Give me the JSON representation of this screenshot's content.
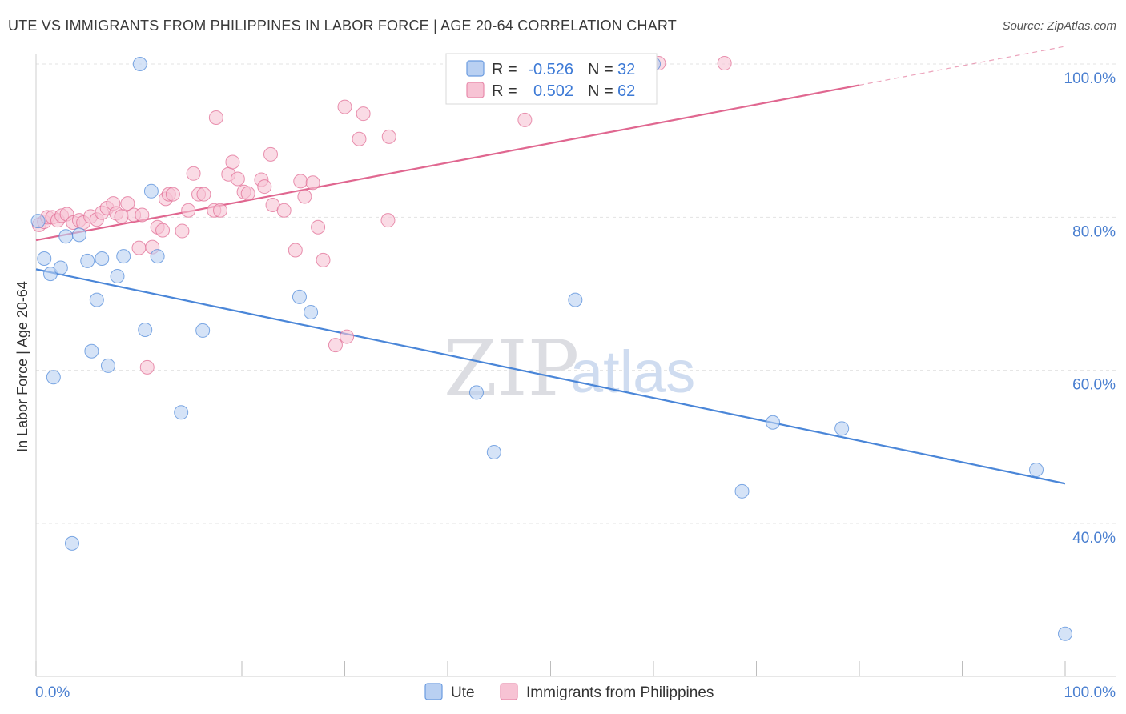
{
  "header": {
    "title": "UTE VS IMMIGRANTS FROM PHILIPPINES IN LABOR FORCE | AGE 20-64 CORRELATION CHART",
    "source": "Source: ZipAtlas.com"
  },
  "watermark": {
    "part1": "ZIP",
    "part2": "atlas"
  },
  "chart_data": {
    "type": "scatter",
    "title": "UTE VS IMMIGRANTS FROM PHILIPPINES IN LABOR FORCE | AGE 20-64 CORRELATION CHART",
    "xlabel": "",
    "ylabel": "In Labor Force | Age 20-64",
    "xlim": [
      0,
      100
    ],
    "ylim": [
      22,
      102
    ],
    "x_tick_labels": {
      "left": "0.0%",
      "right": "100.0%"
    },
    "y_ticks": [
      {
        "value": 100,
        "label": "100.0%"
      },
      {
        "value": 80,
        "label": "80.0%"
      },
      {
        "value": 60,
        "label": "60.0%"
      },
      {
        "value": 40,
        "label": "40.0%"
      }
    ],
    "grid": true,
    "legend_position": "bottom-center",
    "series": [
      {
        "name": "Ute",
        "color": "#4a86d8",
        "fill": "#b9d0f2",
        "R_label": "R =",
        "R_value": "-0.526",
        "N_label": "N =",
        "N_value": "32",
        "trend": {
          "x0": 0,
          "y0": 73.2,
          "x1": 100,
          "y1": 45.2,
          "dashed_from": null
        },
        "points": [
          [
            0.2,
            79.5
          ],
          [
            0.8,
            74.6
          ],
          [
            1.4,
            72.6
          ],
          [
            1.7,
            59.1
          ],
          [
            2.4,
            73.4
          ],
          [
            2.9,
            77.5
          ],
          [
            3.5,
            37.4
          ],
          [
            4.2,
            77.7
          ],
          [
            5.0,
            74.3
          ],
          [
            5.4,
            62.5
          ],
          [
            5.9,
            69.2
          ],
          [
            6.4,
            74.6
          ],
          [
            7.0,
            60.6
          ],
          [
            7.9,
            72.3
          ],
          [
            8.5,
            74.9
          ],
          [
            10.1,
            100.0
          ],
          [
            10.6,
            65.3
          ],
          [
            11.2,
            83.4
          ],
          [
            11.8,
            74.9
          ],
          [
            14.1,
            54.5
          ],
          [
            16.2,
            65.2
          ],
          [
            25.6,
            69.6
          ],
          [
            26.7,
            67.6
          ],
          [
            42.8,
            57.1
          ],
          [
            44.5,
            49.3
          ],
          [
            52.4,
            69.2
          ],
          [
            60.0,
            100.0
          ],
          [
            68.6,
            44.2
          ],
          [
            71.6,
            53.2
          ],
          [
            78.3,
            52.4
          ],
          [
            97.2,
            47.0
          ],
          [
            100.0,
            25.6
          ]
        ]
      },
      {
        "name": "Immigrants from Philippines",
        "color": "#e06790",
        "fill": "#f7c3d4",
        "R_label": "R =",
        "R_value": "0.502",
        "N_label": "N =",
        "N_value": "62",
        "trend": {
          "x0": 0,
          "y0": 77.0,
          "x1": 100,
          "y1": 102.3,
          "dashed_from": 80
        },
        "points": [
          [
            0.3,
            79.0
          ],
          [
            0.8,
            79.4
          ],
          [
            1.1,
            80.0
          ],
          [
            1.6,
            80.0
          ],
          [
            2.1,
            79.6
          ],
          [
            2.5,
            80.2
          ],
          [
            3.0,
            80.4
          ],
          [
            3.6,
            79.3
          ],
          [
            4.2,
            79.6
          ],
          [
            4.6,
            79.3
          ],
          [
            5.3,
            80.1
          ],
          [
            5.9,
            79.7
          ],
          [
            6.4,
            80.6
          ],
          [
            6.9,
            81.2
          ],
          [
            7.5,
            81.8
          ],
          [
            7.8,
            80.5
          ],
          [
            8.3,
            80.1
          ],
          [
            8.9,
            81.8
          ],
          [
            9.5,
            80.3
          ],
          [
            10.3,
            80.3
          ],
          [
            10.0,
            76.0
          ],
          [
            10.8,
            60.4
          ],
          [
            11.3,
            76.1
          ],
          [
            11.8,
            78.7
          ],
          [
            12.3,
            78.3
          ],
          [
            12.6,
            82.4
          ],
          [
            12.9,
            83.0
          ],
          [
            13.3,
            83.0
          ],
          [
            14.2,
            78.2
          ],
          [
            14.8,
            80.9
          ],
          [
            15.3,
            85.7
          ],
          [
            15.8,
            83.0
          ],
          [
            16.3,
            83.0
          ],
          [
            17.3,
            80.9
          ],
          [
            17.9,
            80.9
          ],
          [
            17.5,
            93.0
          ],
          [
            18.7,
            85.6
          ],
          [
            19.1,
            87.2
          ],
          [
            19.6,
            85.0
          ],
          [
            20.2,
            83.3
          ],
          [
            20.6,
            83.1
          ],
          [
            21.9,
            84.9
          ],
          [
            22.2,
            84.0
          ],
          [
            22.8,
            88.2
          ],
          [
            23.0,
            81.6
          ],
          [
            24.1,
            80.9
          ],
          [
            25.2,
            75.7
          ],
          [
            25.7,
            84.7
          ],
          [
            26.1,
            82.7
          ],
          [
            26.9,
            84.5
          ],
          [
            27.4,
            78.7
          ],
          [
            27.9,
            74.4
          ],
          [
            29.1,
            63.3
          ],
          [
            30.0,
            94.4
          ],
          [
            30.2,
            64.4
          ],
          [
            31.4,
            90.2
          ],
          [
            31.8,
            93.5
          ],
          [
            34.2,
            79.6
          ],
          [
            34.3,
            90.5
          ],
          [
            47.5,
            92.7
          ],
          [
            60.5,
            100.1
          ],
          [
            66.9,
            100.1
          ]
        ]
      }
    ]
  }
}
